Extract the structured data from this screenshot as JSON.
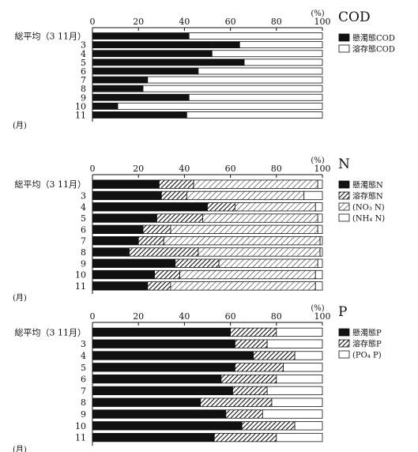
{
  "chart_data": [
    {
      "type": "bar",
      "stacked": true,
      "orientation": "horizontal",
      "title": "COD",
      "unit_label": "(%)",
      "xlim": [
        0,
        100
      ],
      "xticks": [
        "0",
        "20",
        "40",
        "60",
        "80",
        "100"
      ],
      "y_axis_unit": "(月)",
      "categories": [
        "総平均（3  11月）",
        "3",
        "4",
        "5",
        "6",
        "7",
        "8",
        "9",
        "10",
        "11"
      ],
      "series": [
        {
          "name": "懸濁態COD",
          "pattern": "solid",
          "values": [
            42,
            64,
            52,
            66,
            46,
            24,
            22,
            42,
            11,
            41
          ]
        },
        {
          "name": "溶存態COD",
          "pattern": "open",
          "values": [
            58,
            36,
            48,
            34,
            54,
            76,
            78,
            58,
            89,
            59
          ]
        }
      ]
    },
    {
      "type": "bar",
      "stacked": true,
      "orientation": "horizontal",
      "title": "N",
      "unit_label": "(%)",
      "xlim": [
        0,
        100
      ],
      "xticks": [
        "0",
        "20",
        "40",
        "60",
        "80",
        "100"
      ],
      "y_axis_unit": "(月)",
      "categories": [
        "総平均（3  11月）",
        "3",
        "4",
        "5",
        "6",
        "7",
        "8",
        "9",
        "10",
        "11"
      ],
      "series": [
        {
          "name": "懸濁態N",
          "pattern": "solid",
          "values": [
            29,
            30,
            50,
            28,
            22,
            20,
            16,
            36,
            27,
            24
          ]
        },
        {
          "name": "溶存態N",
          "pattern": "hatch",
          "values": [
            15,
            11,
            12,
            20,
            12,
            11,
            30,
            19,
            11,
            10
          ]
        },
        {
          "name": "(NO₃ N)",
          "pattern": "hatch-light",
          "values": [
            54,
            51,
            35,
            50,
            64,
            68,
            53,
            43,
            59,
            63
          ]
        },
        {
          "name": "(NH₄ N)",
          "pattern": "open",
          "values": [
            2,
            8,
            3,
            2,
            2,
            1,
            1,
            2,
            3,
            3
          ]
        }
      ]
    },
    {
      "type": "bar",
      "stacked": true,
      "orientation": "horizontal",
      "title": "P",
      "unit_label": "(%)",
      "xlim": [
        0,
        100
      ],
      "xticks": [
        "0",
        "20",
        "40",
        "60",
        "80",
        "100"
      ],
      "y_axis_unit": "(月)",
      "categories": [
        "総平均（3  11月）",
        "3",
        "4",
        "5",
        "6",
        "7",
        "8",
        "9",
        "10",
        "11"
      ],
      "series": [
        {
          "name": "懸濁態P",
          "pattern": "solid",
          "values": [
            60,
            62,
            70,
            62,
            56,
            61,
            47,
            58,
            65,
            53
          ]
        },
        {
          "name": "溶存態P",
          "pattern": "hatch",
          "values": [
            20,
            14,
            18,
            21,
            24,
            15,
            31,
            16,
            23,
            27
          ]
        },
        {
          "name": "(PO₄ P)",
          "pattern": "open",
          "values": [
            20,
            24,
            12,
            17,
            20,
            24,
            22,
            26,
            12,
            20
          ]
        }
      ]
    }
  ]
}
